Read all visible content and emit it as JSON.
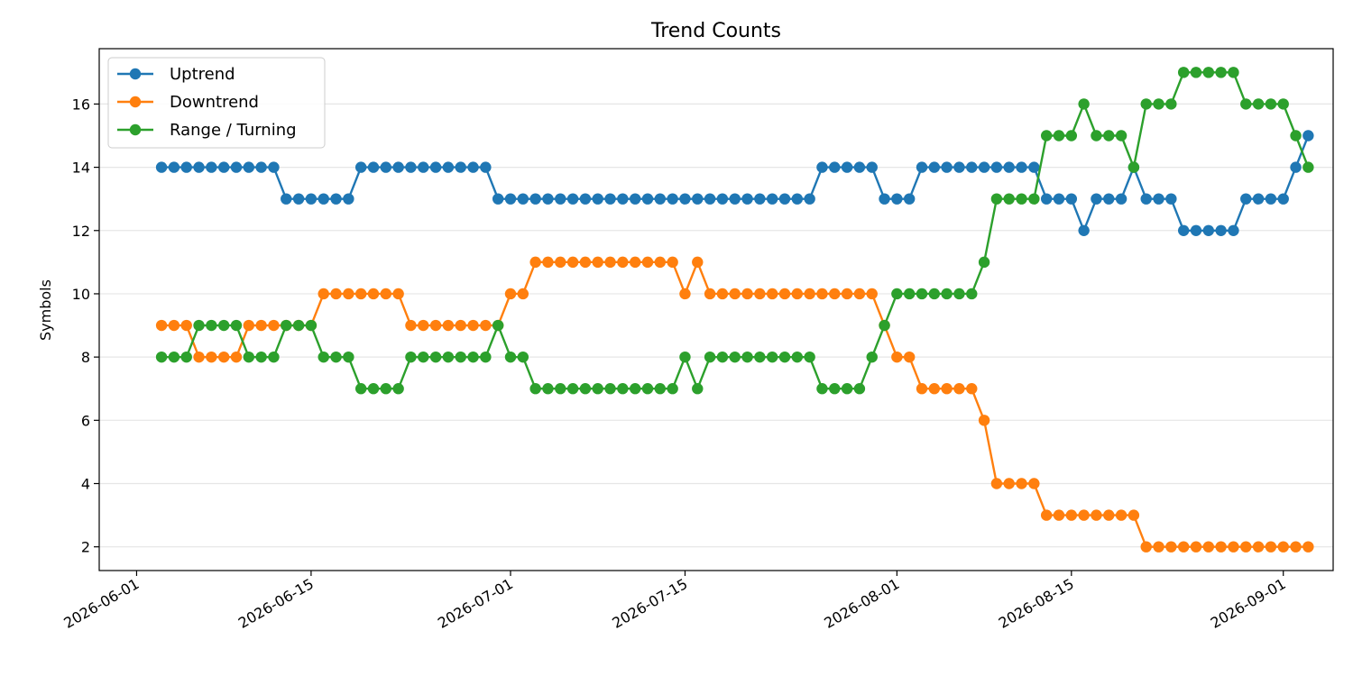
{
  "chart_data": {
    "type": "line",
    "title": "Trend Counts",
    "xlabel": "",
    "ylabel": "Symbols",
    "x_start": "2026-06-03",
    "x_end": "2026-09-01",
    "xlim": [
      "2026-05-29",
      "2026-09-05"
    ],
    "ylim": [
      1.25,
      17.75
    ],
    "x_ticks": [
      "2026-06-01",
      "2026-06-15",
      "2026-07-01",
      "2026-07-15",
      "2026-08-01",
      "2026-08-15",
      "2026-09-01"
    ],
    "y_ticks": [
      2,
      4,
      6,
      8,
      10,
      12,
      14,
      16
    ],
    "grid": "horizontal",
    "legend_position": "top-left",
    "series": [
      {
        "name": "Uptrend",
        "color": "#1f77b4",
        "values": [
          14,
          14,
          14,
          14,
          14,
          14,
          14,
          14,
          14,
          14,
          13,
          13,
          13,
          13,
          13,
          13,
          14,
          14,
          14,
          14,
          14,
          14,
          14,
          14,
          14,
          14,
          14,
          13,
          13,
          13,
          13,
          13,
          13,
          13,
          13,
          13,
          13,
          13,
          13,
          13,
          13,
          13,
          13,
          13,
          13,
          13,
          13,
          13,
          13,
          13,
          13,
          13,
          13,
          14,
          14,
          14,
          14,
          14,
          13,
          13,
          13,
          14,
          14,
          14,
          14,
          14,
          14,
          14,
          14,
          14,
          14,
          13,
          13,
          13,
          12,
          13,
          13,
          13,
          14,
          13,
          13,
          13,
          12,
          12,
          12,
          12,
          12,
          13,
          13,
          13,
          13,
          14,
          15
        ]
      },
      {
        "name": "Downtrend",
        "color": "#ff7f0e",
        "values": [
          9,
          9,
          9,
          8,
          8,
          8,
          8,
          9,
          9,
          9,
          9,
          9,
          9,
          10,
          10,
          10,
          10,
          10,
          10,
          10,
          9,
          9,
          9,
          9,
          9,
          9,
          9,
          9,
          10,
          10,
          11,
          11,
          11,
          11,
          11,
          11,
          11,
          11,
          11,
          11,
          11,
          11,
          10,
          11,
          10,
          10,
          10,
          10,
          10,
          10,
          10,
          10,
          10,
          10,
          10,
          10,
          10,
          10,
          9,
          8,
          8,
          7,
          7,
          7,
          7,
          7,
          6,
          4,
          4,
          4,
          4,
          3,
          3,
          3,
          3,
          3,
          3,
          3,
          3,
          2,
          2,
          2,
          2,
          2,
          2,
          2,
          2,
          2,
          2,
          2,
          2,
          2,
          2
        ]
      },
      {
        "name": "Range / Turning",
        "color": "#2ca02c",
        "values": [
          8,
          8,
          8,
          9,
          9,
          9,
          9,
          8,
          8,
          8,
          9,
          9,
          9,
          8,
          8,
          8,
          7,
          7,
          7,
          7,
          8,
          8,
          8,
          8,
          8,
          8,
          8,
          9,
          8,
          8,
          7,
          7,
          7,
          7,
          7,
          7,
          7,
          7,
          7,
          7,
          7,
          7,
          8,
          7,
          8,
          8,
          8,
          8,
          8,
          8,
          8,
          8,
          8,
          7,
          7,
          7,
          7,
          8,
          9,
          10,
          10,
          10,
          10,
          10,
          10,
          10,
          11,
          13,
          13,
          13,
          13,
          15,
          15,
          15,
          16,
          15,
          15,
          15,
          14,
          16,
          16,
          16,
          17,
          17,
          17,
          17,
          17,
          16,
          16,
          16,
          16,
          15,
          14
        ]
      }
    ]
  }
}
